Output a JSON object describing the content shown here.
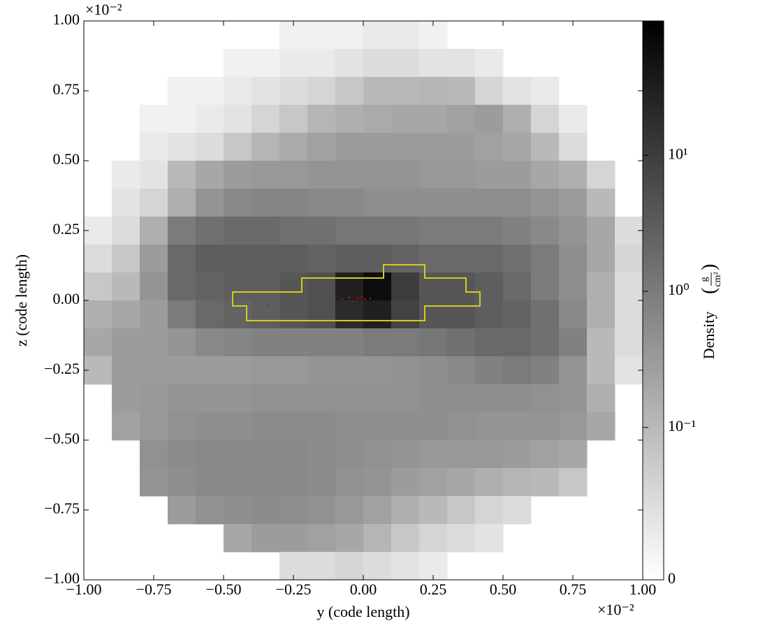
{
  "chart_data": {
    "type": "heatmap",
    "xlabel": "y  (code length)",
    "ylabel": "z  (code length)",
    "x_offset_label": "×10⁻²",
    "y_offset_label": "×10⁻²",
    "xlim": [
      -1,
      1
    ],
    "ylim": [
      -1,
      1
    ],
    "xticks": [
      {
        "value": -1,
        "label": "−1.00"
      },
      {
        "value": -0.75,
        "label": "−0.75"
      },
      {
        "value": -0.5,
        "label": "−0.50"
      },
      {
        "value": -0.25,
        "label": "−0.25"
      },
      {
        "value": 0,
        "label": "0.00"
      },
      {
        "value": 0.25,
        "label": "0.25"
      },
      {
        "value": 0.5,
        "label": "0.50"
      },
      {
        "value": 0.75,
        "label": "0.75"
      },
      {
        "value": 1,
        "label": "1.00"
      }
    ],
    "yticks": [
      {
        "value": -1,
        "label": "−1.00"
      },
      {
        "value": -0.75,
        "label": "−0.75"
      },
      {
        "value": -0.5,
        "label": "−0.50"
      },
      {
        "value": -0.25,
        "label": "−0.25"
      },
      {
        "value": 0,
        "label": "0.00"
      },
      {
        "value": 0.25,
        "label": "0.25"
      },
      {
        "value": 0.5,
        "label": "0.50"
      },
      {
        "value": 0.75,
        "label": "0.75"
      },
      {
        "value": 1,
        "label": "1.00"
      }
    ],
    "colormap": "binary",
    "colorbar": {
      "label": "Density",
      "unit_numerator": "g",
      "unit_denominator": "cm²",
      "scale": "symlog",
      "linthresh": 0.1,
      "linscale": 1.12,
      "lim": [
        0,
        97
      ],
      "ticks": [
        0,
        {
          "value": 0.1,
          "label": "10⁻¹"
        },
        {
          "value": 1,
          "label": "10⁰"
        },
        {
          "value": 10,
          "label": "10¹"
        }
      ]
    },
    "density": [
      [
        null,
        null,
        null,
        null,
        null,
        null,
        null,
        0.02,
        0.02,
        0.02,
        0.03,
        0.03,
        0.02,
        null,
        null,
        null,
        null,
        null,
        null,
        null
      ],
      [
        null,
        null,
        null,
        null,
        null,
        0.02,
        0.02,
        0.03,
        0.03,
        0.04,
        0.05,
        0.05,
        0.04,
        0.04,
        0.03,
        null,
        null,
        null,
        null,
        null
      ],
      [
        null,
        null,
        null,
        0.02,
        0.02,
        0.03,
        0.04,
        0.05,
        0.06,
        0.08,
        0.1,
        0.1,
        0.12,
        0.1,
        0.06,
        0.04,
        0.03,
        null,
        null,
        null
      ],
      [
        null,
        null,
        0.02,
        0.02,
        0.03,
        0.04,
        0.06,
        0.08,
        0.12,
        0.15,
        0.18,
        0.2,
        0.2,
        0.25,
        0.3,
        0.15,
        0.06,
        0.03,
        null,
        null
      ],
      [
        null,
        null,
        0.03,
        0.04,
        0.05,
        0.08,
        0.12,
        0.18,
        0.25,
        0.3,
        0.3,
        0.3,
        0.3,
        0.3,
        0.25,
        0.2,
        0.1,
        0.05,
        null,
        null
      ],
      [
        null,
        0.03,
        0.04,
        0.1,
        0.2,
        0.3,
        0.35,
        0.35,
        0.4,
        0.4,
        0.4,
        0.4,
        0.35,
        0.35,
        0.3,
        0.3,
        0.2,
        0.15,
        0.06,
        null
      ],
      [
        null,
        0.04,
        0.06,
        0.15,
        0.4,
        0.6,
        0.7,
        0.7,
        0.6,
        0.6,
        0.5,
        0.5,
        0.5,
        0.5,
        0.5,
        0.5,
        0.4,
        0.3,
        0.1,
        null
      ],
      [
        0.03,
        0.05,
        0.15,
        1.0,
        1.5,
        2.0,
        2.0,
        1.5,
        1.5,
        1.2,
        1.2,
        1.2,
        1.0,
        1.0,
        1.0,
        0.8,
        0.6,
        0.4,
        0.2,
        0.05
      ],
      [
        0.05,
        0.08,
        0.3,
        2.0,
        3.0,
        3.0,
        3.0,
        3.0,
        2.5,
        3.0,
        3.0,
        2.5,
        2.0,
        2.0,
        2.0,
        1.5,
        1.0,
        0.5,
        0.2,
        0.06
      ],
      [
        0.08,
        0.1,
        0.4,
        2.0,
        2.5,
        3.0,
        3.0,
        4.0,
        5.0,
        30,
        60,
        10,
        4.0,
        4.0,
        3.0,
        2.0,
        1.0,
        0.5,
        0.15,
        0.05
      ],
      [
        0.15,
        0.2,
        0.3,
        1.0,
        2.0,
        2.5,
        3.0,
        4.0,
        5.0,
        20,
        30,
        8.0,
        4.0,
        4.0,
        3.0,
        2.5,
        1.5,
        0.6,
        0.15,
        0.05
      ],
      [
        0.2,
        0.3,
        0.3,
        0.4,
        0.6,
        0.7,
        0.8,
        0.8,
        0.8,
        0.8,
        1.0,
        1.0,
        1.2,
        1.5,
        2.0,
        2.0,
        1.5,
        0.8,
        0.1,
        0.05
      ],
      [
        0.1,
        0.3,
        0.3,
        0.3,
        0.3,
        0.3,
        0.35,
        0.35,
        0.4,
        0.4,
        0.4,
        0.45,
        0.5,
        0.6,
        0.8,
        1.0,
        0.8,
        0.4,
        0.1,
        0.04
      ],
      [
        null,
        0.3,
        0.35,
        0.4,
        0.4,
        0.4,
        0.45,
        0.45,
        0.45,
        0.45,
        0.45,
        0.45,
        0.5,
        0.5,
        0.5,
        0.5,
        0.45,
        0.4,
        0.15,
        null
      ],
      [
        null,
        0.25,
        0.35,
        0.45,
        0.5,
        0.5,
        0.55,
        0.55,
        0.55,
        0.5,
        0.5,
        0.5,
        0.5,
        0.45,
        0.4,
        0.4,
        0.4,
        0.35,
        0.2,
        null
      ],
      [
        null,
        null,
        0.45,
        0.55,
        0.6,
        0.6,
        0.6,
        0.6,
        0.55,
        0.5,
        0.45,
        0.4,
        0.35,
        0.35,
        0.35,
        0.3,
        0.25,
        0.2,
        null,
        null
      ],
      [
        null,
        null,
        0.4,
        0.5,
        0.6,
        0.6,
        0.6,
        0.6,
        0.55,
        0.45,
        0.4,
        0.3,
        0.25,
        0.2,
        0.15,
        0.12,
        0.1,
        0.08,
        null,
        null
      ],
      [
        null,
        null,
        null,
        0.3,
        0.45,
        0.5,
        0.55,
        0.5,
        0.45,
        0.35,
        0.25,
        0.15,
        0.1,
        0.08,
        0.06,
        0.05,
        null,
        null,
        null,
        null
      ],
      [
        null,
        null,
        null,
        null,
        null,
        0.2,
        0.3,
        0.3,
        0.25,
        0.2,
        0.12,
        0.08,
        0.06,
        0.05,
        0.04,
        null,
        null,
        null,
        null,
        null
      ],
      [
        null,
        null,
        null,
        null,
        null,
        null,
        null,
        0.05,
        0.05,
        0.06,
        0.05,
        0.04,
        0.03,
        null,
        null,
        null,
        null,
        null,
        null,
        null
      ]
    ]
  }
}
